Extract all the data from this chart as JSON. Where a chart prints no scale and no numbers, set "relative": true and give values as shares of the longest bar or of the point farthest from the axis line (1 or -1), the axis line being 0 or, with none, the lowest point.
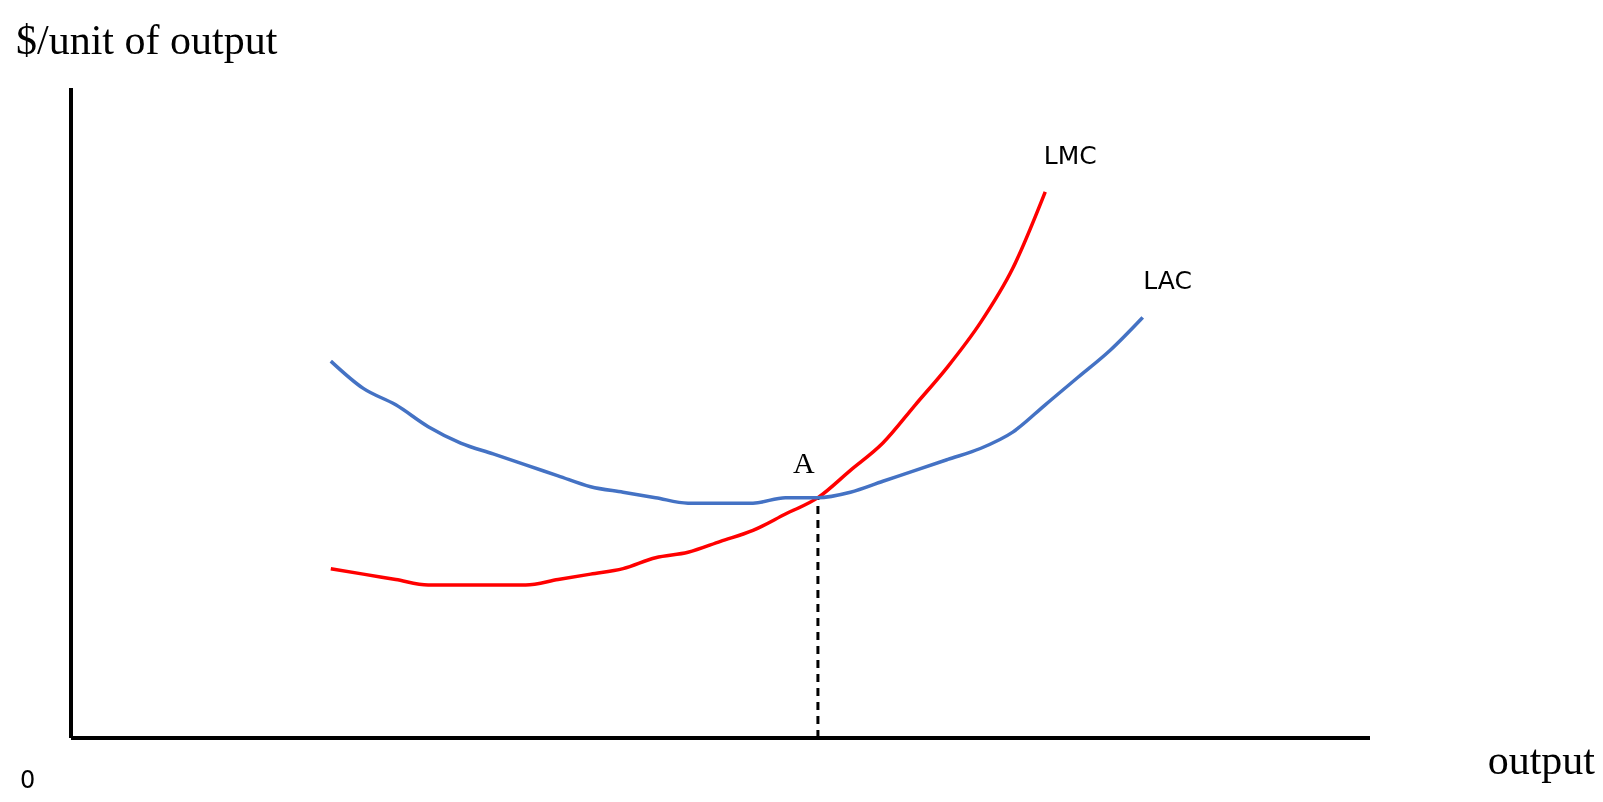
{
  "chart_data": {
    "type": "line",
    "relative": true,
    "xlabel": "output",
    "ylabel": "$/unit of output",
    "marker": "none",
    "categories": [
      null,
      null,
      null,
      null,
      null,
      null,
      null,
      null,
      null,
      null,
      null,
      null,
      null,
      null,
      null,
      null,
      null,
      null,
      null,
      null,
      null,
      null,
      null,
      null,
      null,
      null,
      null,
      null,
      null,
      null,
      null,
      null,
      null,
      null,
      null,
      null,
      null,
      null,
      null,
      null,
      null
    ],
    "series": [
      {
        "name": "LMC",
        "color": "#ff0000",
        "values": [
          null,
          null,
          null,
          null,
          null,
          null,
          null,
          null,
          0.31,
          0.3,
          0.29,
          0.28,
          0.28,
          0.28,
          0.28,
          0.29,
          0.3,
          0.31,
          0.33,
          0.34,
          0.36,
          0.38,
          0.41,
          0.44,
          0.49,
          0.54,
          0.61,
          0.68,
          0.76,
          0.86,
          1,
          null,
          null,
          null,
          null,
          null,
          null,
          null,
          null,
          null,
          null
        ]
      },
      {
        "name": "LAC",
        "color": "#4472c4",
        "values": [
          null,
          null,
          null,
          null,
          null,
          null,
          null,
          null,
          0.69,
          0.64,
          0.61,
          0.57,
          0.54,
          0.52,
          0.5,
          0.48,
          0.46,
          0.45,
          0.44,
          0.43,
          0.43,
          0.43,
          0.44,
          0.44,
          0.45,
          0.47,
          0.49,
          0.51,
          0.53,
          0.56,
          0.61,
          0.66,
          0.71,
          0.77,
          null,
          null,
          null,
          null,
          null,
          null,
          null
        ]
      }
    ],
    "annotations": [
      "A",
      "0"
    ]
  }
}
